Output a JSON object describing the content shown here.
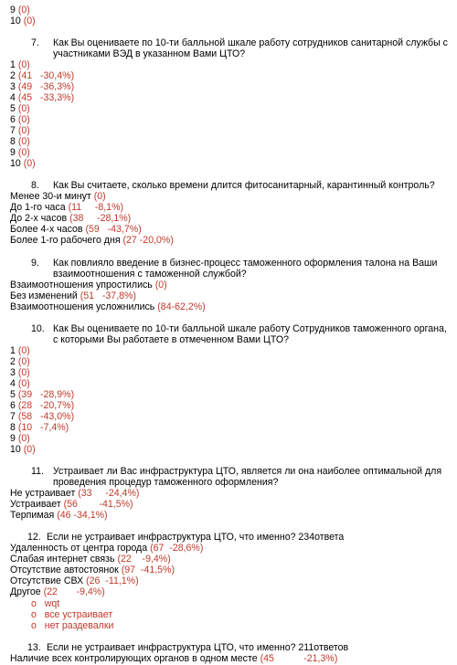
{
  "doc": {
    "top": [
      {
        "label": "9",
        "value": "(0)"
      },
      {
        "label": "10",
        "value": "(0)"
      }
    ],
    "q7": {
      "num": "7.",
      "line1": "Как Вы оцениваете по 10-ти балльной шкале работу сотрудников санитарной службы с",
      "line2": "участниками ВЭД в указанном Вами ЦТО?",
      "answers": [
        {
          "label": "1",
          "value": "(0)"
        },
        {
          "label": "2",
          "value": "(41   -30,4%)"
        },
        {
          "label": "3",
          "value": "(49   -36,3%)"
        },
        {
          "label": "4",
          "value": "(45   -33,3%)"
        },
        {
          "label": "5",
          "value": "(0)"
        },
        {
          "label": "6",
          "value": "(0)"
        },
        {
          "label": "7",
          "value": "(0)"
        },
        {
          "label": "8",
          "value": "(0)"
        },
        {
          "label": "9",
          "value": "(0)"
        },
        {
          "label": "10",
          "value": "(0)"
        }
      ]
    },
    "q8": {
      "num": "8.",
      "line1": "Как Вы считаете, сколько времени длится фитосанитарный, карантинный контроль?",
      "answers": [
        {
          "label": "Менее 30-и минут",
          "value": "(0)"
        },
        {
          "label": "До 1-го часа",
          "value": "(11     -8,1%)"
        },
        {
          "label": "До 2-х часов",
          "value": "(38     -28,1%)"
        },
        {
          "label": "Более 4-х часов",
          "value": "(59   -43,7%)"
        },
        {
          "label": "Более 1-го рабочего дня",
          "value": "(27 -20,0%)"
        }
      ]
    },
    "q9": {
      "num": "9.",
      "line1": "Как повлияло введение в бизнес-процесс таможенного оформления талона на Ваши",
      "line2": "взаимоотношения с таможенной службой?",
      "answers": [
        {
          "label": "Взаимоотношения упростились",
          "value": "(0)"
        },
        {
          "label": "Без изменений",
          "value": "(51   -37,8%)"
        },
        {
          "label": "Взаимоотношения усложнились",
          "value": "(84-62,2%)"
        }
      ]
    },
    "q10": {
      "num": "10.",
      "line1": "Как Вы оцениваете по 10-ти балльной шкале работу Сотрудников таможенного органа,",
      "line2": "с которыми Вы работаете в отмеченном Вами ЦТО?",
      "answers": [
        {
          "label": "1",
          "value": "(0)"
        },
        {
          "label": "2",
          "value": "(0)"
        },
        {
          "label": "3",
          "value": "(0)"
        },
        {
          "label": "4",
          "value": "(0)"
        },
        {
          "label": "5",
          "value": "(39   -28,9%)"
        },
        {
          "label": "6",
          "value": "(28   -20,7%)"
        },
        {
          "label": "7",
          "value": "(58   -43,0%)"
        },
        {
          "label": "8",
          "value": "(10   -7,4%)"
        },
        {
          "label": "9",
          "value": "(0)"
        },
        {
          "label": "10",
          "value": "(0)"
        }
      ]
    },
    "q11": {
      "num": "11.",
      "line1": "Устраивает ли Вас инфраструктура ЦТО, является ли она наиболее оптимальной для",
      "line2": "проведения процедур таможенного оформления?",
      "answers": [
        {
          "label": "Не устраивает",
          "value": "(33     -24,4%)"
        },
        {
          "label": "Устраивает",
          "value": "(56        -41,5%)"
        },
        {
          "label": "Терпимая",
          "value": "(46 -34,1%)"
        }
      ]
    },
    "q12": {
      "num": "12.",
      "line1": "Если не устраивает инфраструктура ЦТО, что именно? 234ответа",
      "answers": [
        {
          "label": "Удаленность от центра города",
          "value": "(67  -28,6%)"
        },
        {
          "label": "Слабая интернет связь",
          "value": "(22    -9,4%)"
        },
        {
          "label": "Отсутствие автостоянок",
          "value": "(97  -41,5%)"
        },
        {
          "label": "Отсутствие СВХ",
          "value": "(26  -11,1%)"
        },
        {
          "label": "Другое",
          "value": "(22       -9,4%)"
        }
      ],
      "other": [
        "wqt",
        "все устраивает",
        "нет раздевалки"
      ]
    },
    "q13": {
      "num": "13.",
      "line1": "Если не устраивает инфраструктура ЦТО, что именно? 211ответов",
      "answers": [
        {
          "label": "Наличие всех контролирующих органов в одном месте",
          "value": "(45           -21,3%)"
        }
      ]
    }
  }
}
